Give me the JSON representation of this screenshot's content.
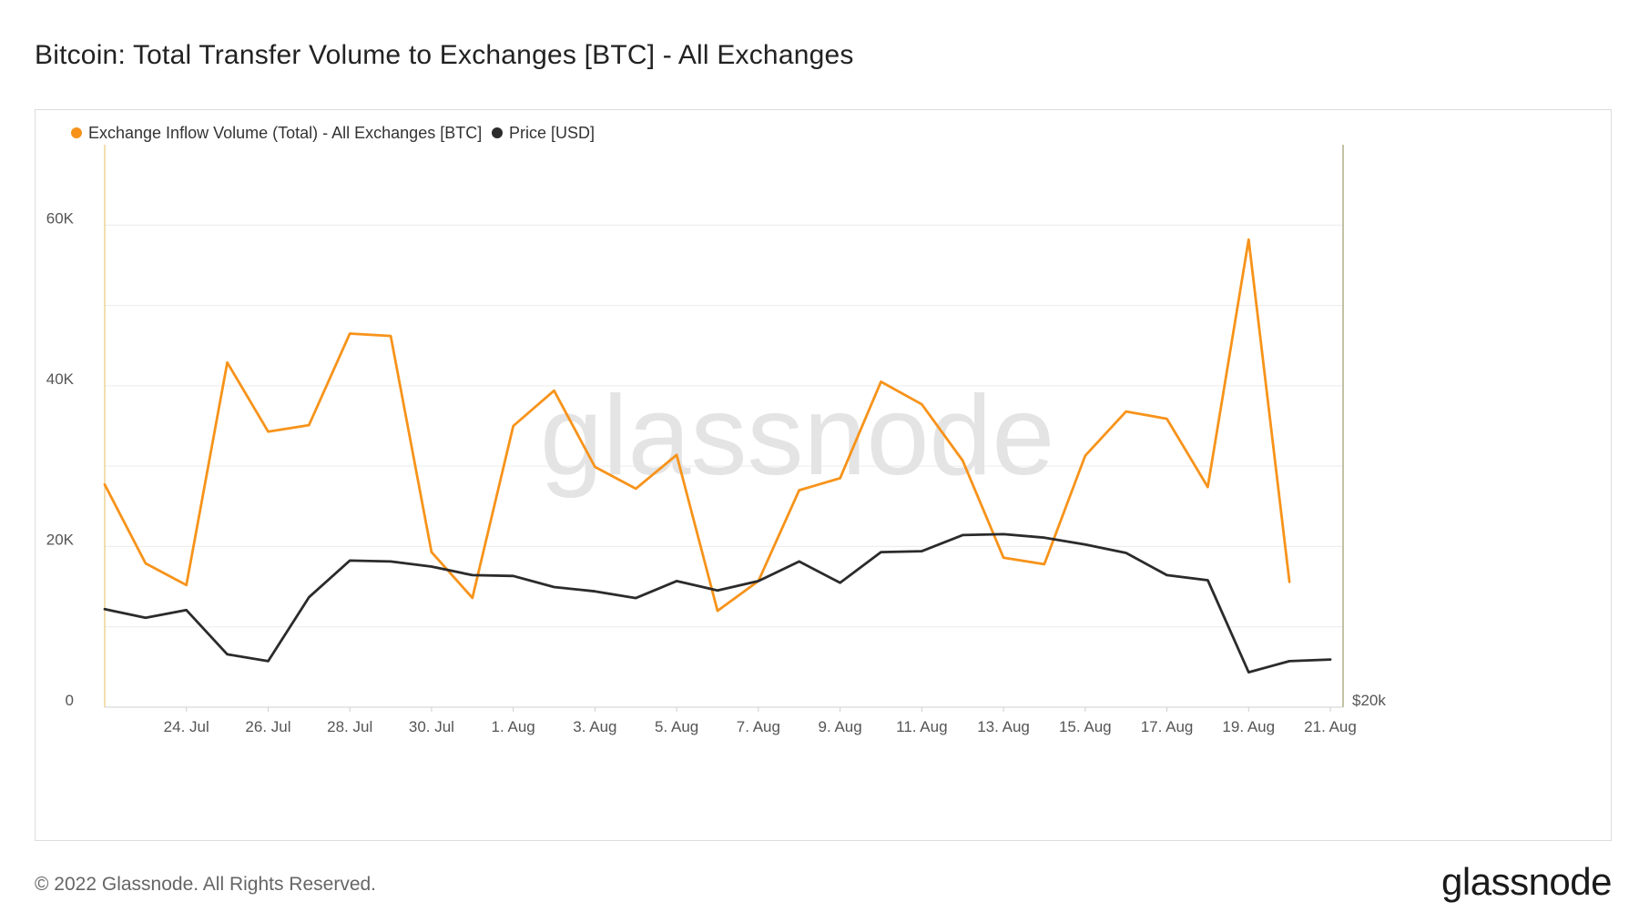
{
  "page": {
    "title": "Bitcoin: Total Transfer Volume to Exchanges [BTC] - All Exchanges",
    "copyright": "© 2022 Glassnode. All Rights Reserved.",
    "logo_text": "glassnode",
    "watermark": "glassnode"
  },
  "colors": {
    "inflow": "#f7931a",
    "price": "#2b2b2b",
    "grid": "#ececec",
    "axis_left": "#e8c77a",
    "axis_right": "#9a9a6a"
  },
  "chart_data": {
    "type": "line",
    "x_dates": [
      "2022-07-22",
      "2022-07-23",
      "2022-07-24",
      "2022-07-25",
      "2022-07-26",
      "2022-07-27",
      "2022-07-28",
      "2022-07-29",
      "2022-07-30",
      "2022-07-31",
      "2022-08-01",
      "2022-08-02",
      "2022-08-03",
      "2022-08-04",
      "2022-08-05",
      "2022-08-06",
      "2022-08-07",
      "2022-08-08",
      "2022-08-09",
      "2022-08-10",
      "2022-08-11",
      "2022-08-12",
      "2022-08-13",
      "2022-08-14",
      "2022-08-15",
      "2022-08-16",
      "2022-08-17",
      "2022-08-18",
      "2022-08-19",
      "2022-08-20",
      "2022-08-21"
    ],
    "x_ticks": [
      {
        "date": "2022-07-24",
        "label": "24. Jul"
      },
      {
        "date": "2022-07-26",
        "label": "26. Jul"
      },
      {
        "date": "2022-07-28",
        "label": "28. Jul"
      },
      {
        "date": "2022-07-30",
        "label": "30. Jul"
      },
      {
        "date": "2022-08-01",
        "label": "1. Aug"
      },
      {
        "date": "2022-08-03",
        "label": "3. Aug"
      },
      {
        "date": "2022-08-05",
        "label": "5. Aug"
      },
      {
        "date": "2022-08-07",
        "label": "7. Aug"
      },
      {
        "date": "2022-08-09",
        "label": "9. Aug"
      },
      {
        "date": "2022-08-11",
        "label": "11. Aug"
      },
      {
        "date": "2022-08-13",
        "label": "13. Aug"
      },
      {
        "date": "2022-08-15",
        "label": "15. Aug"
      },
      {
        "date": "2022-08-17",
        "label": "17. Aug"
      },
      {
        "date": "2022-08-19",
        "label": "19. Aug"
      },
      {
        "date": "2022-08-21",
        "label": "21. Aug"
      }
    ],
    "y_left": {
      "ylim": [
        0,
        70000
      ],
      "gridlines": [
        10000,
        20000,
        30000,
        40000,
        50000,
        60000
      ],
      "ticks": [
        {
          "value": 0,
          "label": "0"
        },
        {
          "value": 20000,
          "label": "20K"
        },
        {
          "value": 40000,
          "label": "40K"
        },
        {
          "value": 60000,
          "label": "60K"
        }
      ]
    },
    "y_right": {
      "ylim": [
        20000,
        26600
      ],
      "ticks": [
        {
          "value": 20000,
          "label": "$20k"
        }
      ]
    },
    "series": [
      {
        "name": "Exchange Inflow Volume (Total) - All Exchanges [BTC]",
        "axis": "left",
        "values": [
          27700,
          17900,
          15200,
          42900,
          34300,
          35100,
          46500,
          46200,
          19300,
          13600,
          35000,
          39400,
          29900,
          27200,
          31400,
          12000,
          15700,
          27000,
          28500,
          40500,
          37700,
          30700,
          18600,
          17800,
          31300,
          36800,
          35900,
          27400,
          58200,
          15600,
          null
        ]
      },
      {
        "name": "Price [USD]",
        "axis": "right",
        "values": [
          21150,
          21050,
          21140,
          20620,
          20540,
          21290,
          21720,
          21710,
          21650,
          21550,
          21540,
          21410,
          21360,
          21280,
          21480,
          21370,
          21480,
          21710,
          21460,
          21820,
          21830,
          22020,
          22030,
          21990,
          21910,
          21810,
          21550,
          21490,
          20410,
          20540,
          20560
        ]
      }
    ]
  }
}
